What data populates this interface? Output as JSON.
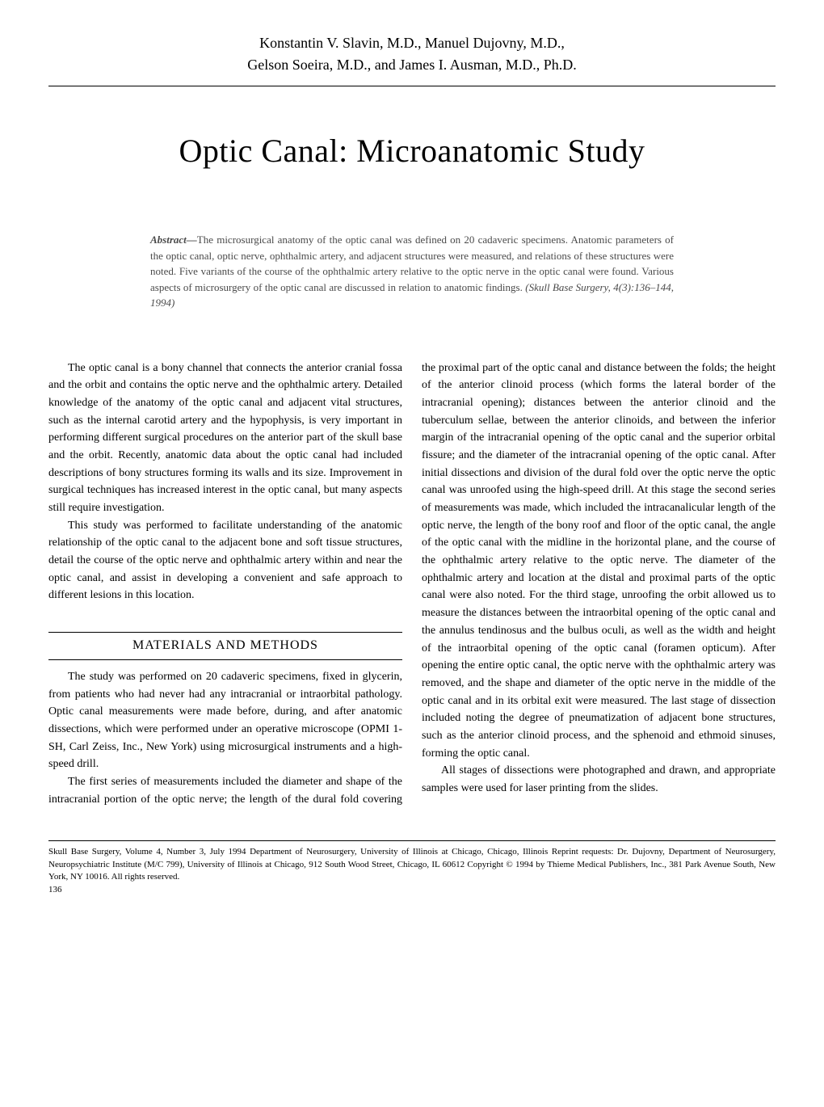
{
  "authors": {
    "line1": "Konstantin V. Slavin, M.D., Manuel Dujovny, M.D.,",
    "line2": "Gelson Soeira, M.D., and James I. Ausman, M.D., Ph.D."
  },
  "title": "Optic Canal: Microanatomic Study",
  "abstract": {
    "label": "Abstract—",
    "text": "The microsurgical anatomy of the optic canal was defined on 20 cadaveric specimens. Anatomic parameters of the optic canal, optic nerve, ophthalmic artery, and adjacent structures were measured, and relations of these structures were noted. Five variants of the course of the ophthalmic artery relative to the optic nerve in the optic canal were found. Various aspects of microsurgery of the optic canal are discussed in relation to anatomic findings. ",
    "citation": "(Skull Base Surgery, 4(3):136–144, 1994)"
  },
  "body": {
    "p1": "The optic canal is a bony channel that connects the anterior cranial fossa and the orbit and contains the optic nerve and the ophthalmic artery. Detailed knowledge of the anatomy of the optic canal and adjacent vital structures, such as the internal carotid artery and the hypophysis, is very important in performing different surgical procedures on the anterior part of the skull base and the orbit. Recently, anatomic data about the optic canal had included descriptions of bony structures forming its walls and its size. Improvement in surgical techniques has increased interest in the optic canal, but many aspects still require investigation.",
    "p2": "This study was performed to facilitate understanding of the anatomic relationship of the optic canal to the adjacent bone and soft tissue structures, detail the course of the optic nerve and ophthalmic artery within and near the optic canal, and assist in developing a convenient and safe approach to different lesions in this location.",
    "section1_heading": "MATERIALS AND METHODS",
    "p3": "The study was performed on 20 cadaveric specimens, fixed in glycerin, from patients who had never had any intracranial or intraorbital pathology. Optic canal measurements were made before, during, and after anatomic dissections, which were performed under an operative microscope (OPMI 1-SH, Carl Zeiss, Inc., New York) using microsurgical instruments and a high-speed drill.",
    "p4": "The first series of measurements included the diameter and shape of the intracranial portion of the optic nerve; the length of the dural fold covering the proximal part of the optic canal and distance between the folds; the height of the anterior clinoid process (which forms the lateral border of the intracranial opening); distances between the anterior clinoid and the tuberculum sellae, between the anterior clinoids, and between the inferior margin of the intracranial opening of the optic canal and the superior orbital fissure; and the diameter of the intracranial opening of the optic canal. After initial dissections and division of the dural fold over the optic nerve the optic canal was unroofed using the high-speed drill. At this stage the second series of measurements was made, which included the intracanalicular length of the optic nerve, the length of the bony roof and floor of the optic canal, the angle of the optic canal with the midline in the horizontal plane, and the course of the ophthalmic artery relative to the optic nerve. The diameter of the ophthalmic artery and location at the distal and proximal parts of the optic canal were also noted. For the third stage, unroofing the orbit allowed us to measure the distances between the intraorbital opening of the optic canal and the annulus tendinosus and the bulbus oculi, as well as the width and height of the intraorbital opening of the optic canal (foramen opticum). After opening the entire optic canal, the optic nerve with the ophthalmic artery was removed, and the shape and diameter of the optic nerve in the middle of the optic canal and in its orbital exit were measured. The last stage of dissection included noting the degree of pneumatization of adjacent bone structures, such as the anterior clinoid process, and the sphenoid and ethmoid sinuses, forming the optic canal.",
    "p5": "All stages of dissections were photographed and drawn, and appropriate samples were used for laser printing from the slides."
  },
  "footer": {
    "page_number": "136",
    "text": "Skull Base Surgery, Volume 4, Number 3, July 1994   Department of Neurosurgery, University of Illinois at Chicago, Chicago, Illinois   Reprint requests: Dr. Dujovny, Department of Neurosurgery, Neuropsychiatric Institute (M/C 799), University of Illinois at Chicago, 912 South Wood Street, Chicago, IL 60612   Copyright © 1994 by Thieme Medical Publishers, Inc., 381 Park Avenue South, New York, NY 10016. All rights reserved."
  }
}
